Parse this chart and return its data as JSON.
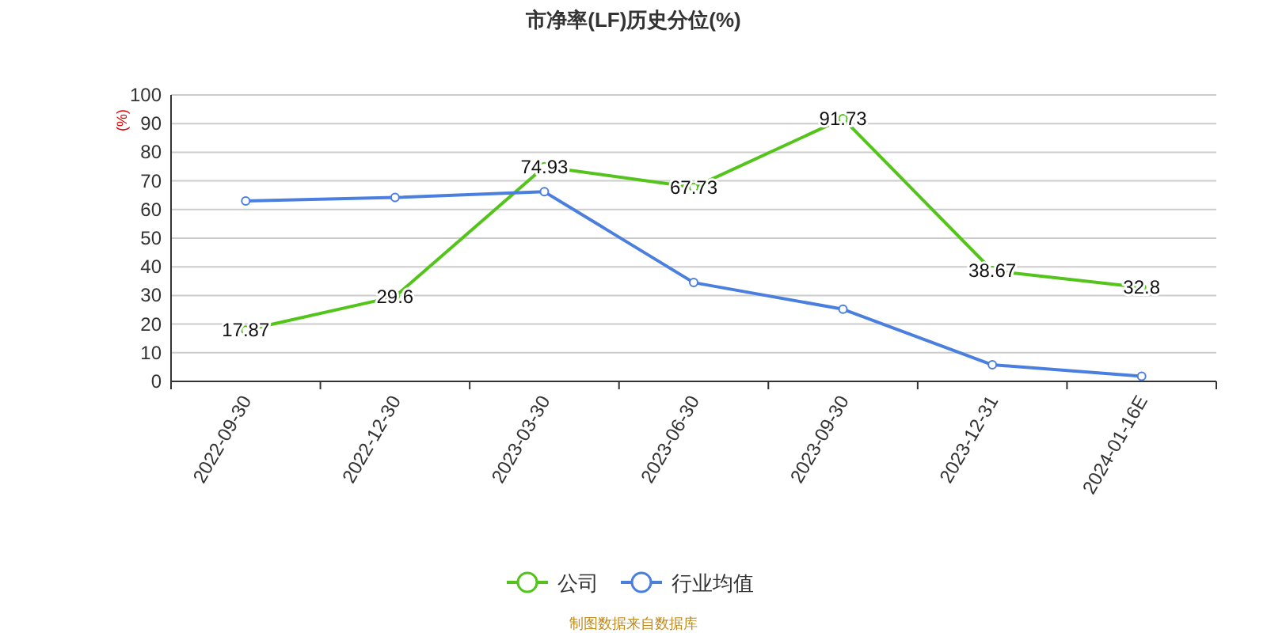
{
  "chart_data": {
    "type": "line",
    "title": "市净率(LF)历史分位(%)",
    "ylabel": "(%)",
    "categories": [
      "2022-09-30",
      "2022-12-30",
      "2023-03-30",
      "2023-06-30",
      "2023-09-30",
      "2023-12-31",
      "2024-01-16E"
    ],
    "series": [
      {
        "name": "公司",
        "color": "#52c41a",
        "values": [
          17.87,
          29.6,
          74.93,
          67.73,
          91.73,
          38.67,
          32.8
        ],
        "value_labels": [
          "17.87",
          "29.6",
          "74.93",
          "67.73",
          "91.73",
          "38.67",
          "32.8"
        ]
      },
      {
        "name": "行业均值",
        "color": "#4a7fe0",
        "values": [
          63.0,
          64.2,
          66.2,
          34.5,
          25.2,
          5.8,
          1.8
        ]
      }
    ],
    "ylim": [
      0,
      100
    ],
    "yticks": [
      0,
      10,
      20,
      30,
      40,
      50,
      60,
      70,
      80,
      90,
      100
    ],
    "grid": "y",
    "legend": "bottom",
    "marker": "circle",
    "line_style": "solid",
    "annotations": [
      "制图数据来自数据库"
    ]
  }
}
